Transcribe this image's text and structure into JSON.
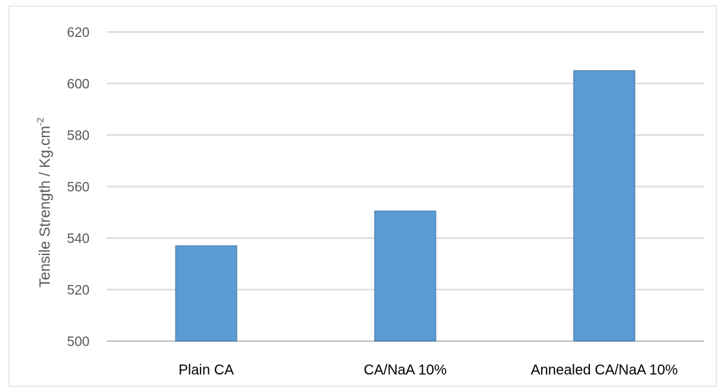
{
  "chart_data": {
    "type": "bar",
    "categories": [
      "Plain CA",
      "CA/NaA 10%",
      "Annealed CA/NaA 10%"
    ],
    "values": [
      537,
      550.5,
      605
    ],
    "ylabel_main": "Tensile Strength / Kg.cm",
    "ylabel_sup": "-2",
    "ylim": [
      500,
      620
    ],
    "yticks": [
      500,
      520,
      540,
      560,
      580,
      600,
      620
    ],
    "grid": true,
    "legend": "none",
    "colors": {
      "bar": "#5b9bd5",
      "bar_edge": "#41719c",
      "grid": "#d9d9d9",
      "axis": "#bfbfbf"
    }
  }
}
